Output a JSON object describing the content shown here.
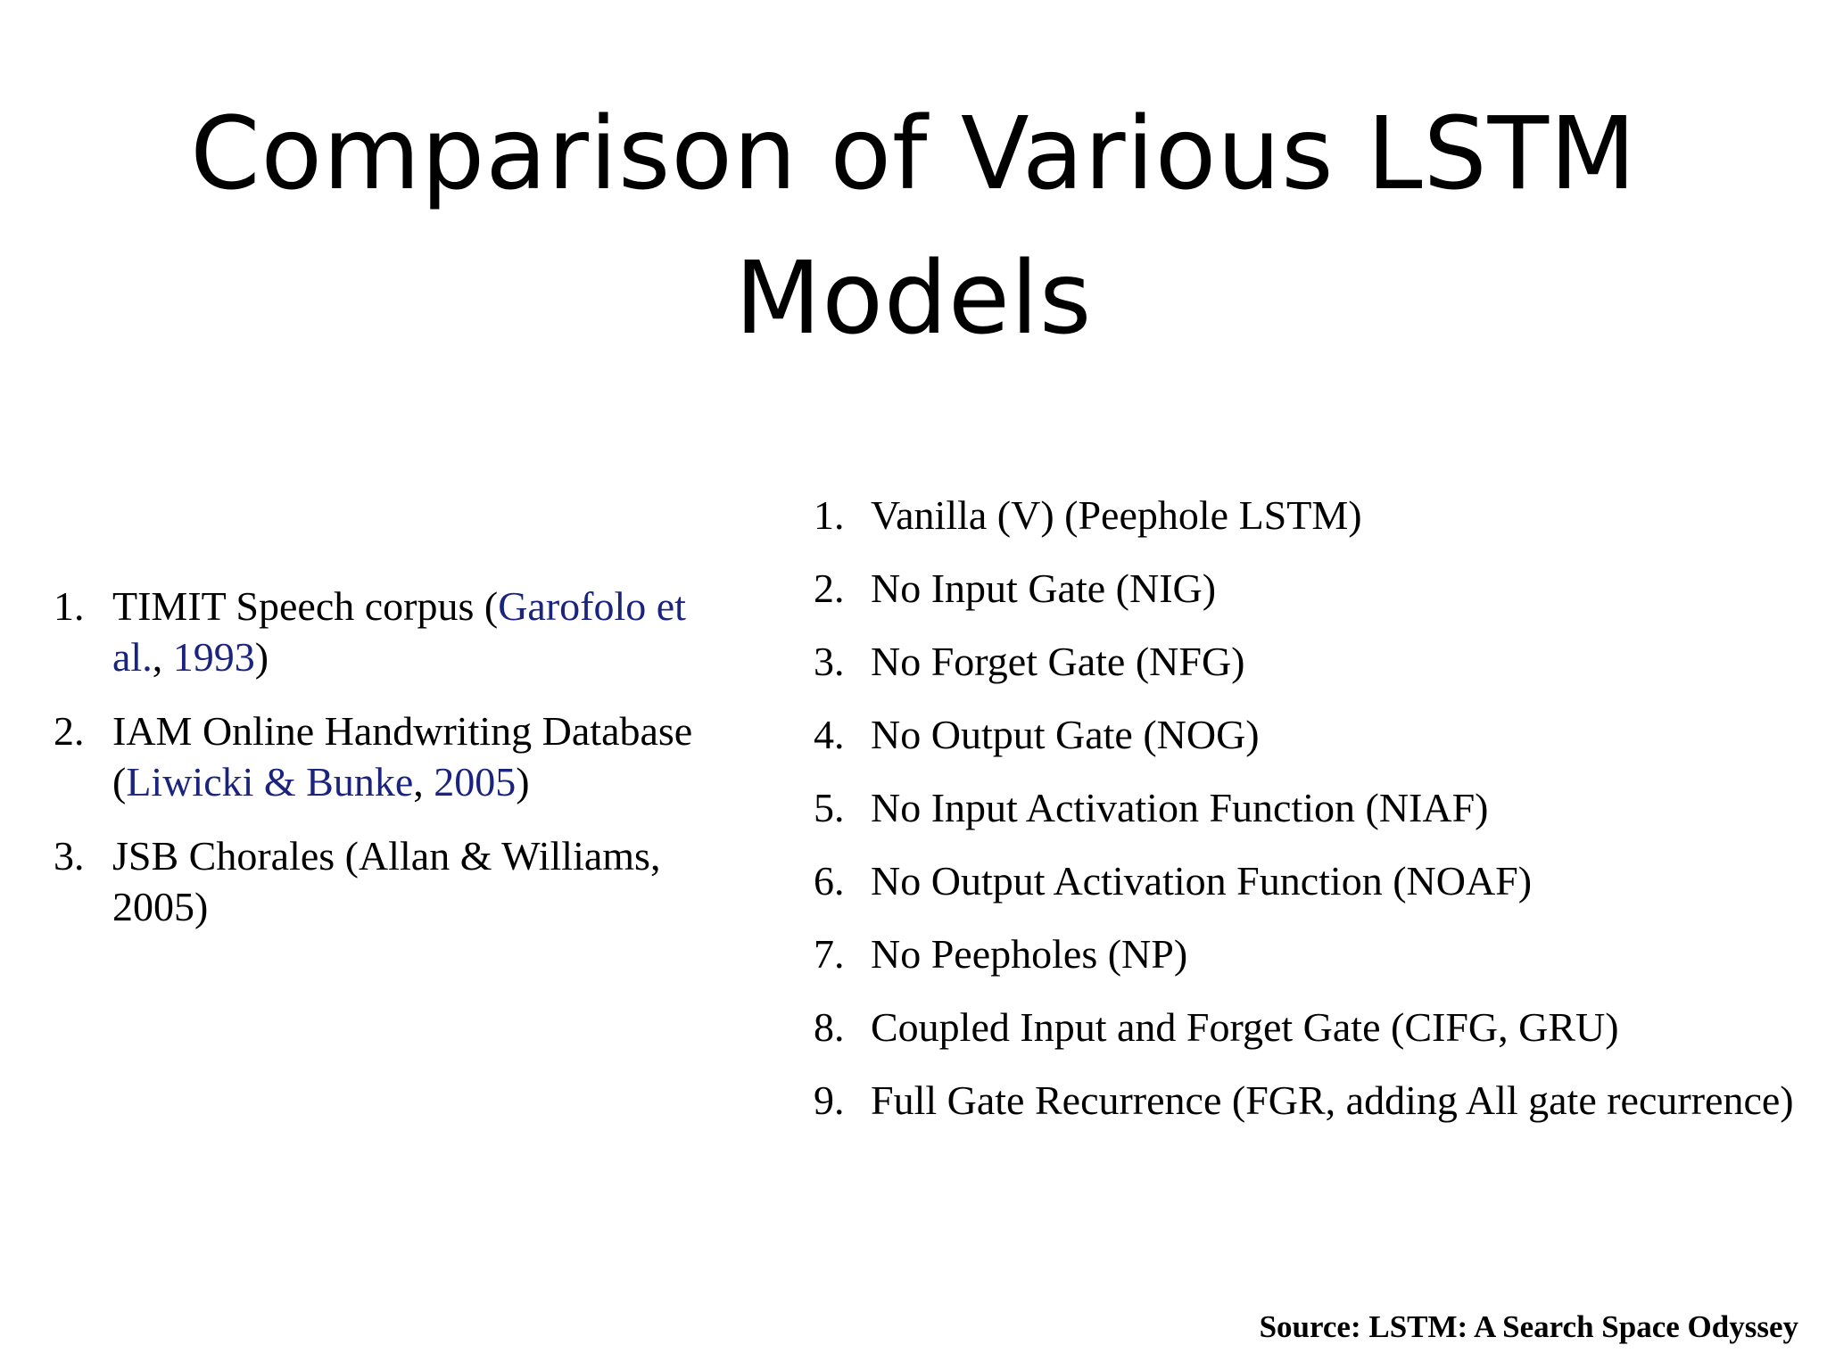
{
  "title": {
    "line1": "Comparison of Various LSTM",
    "line2": "Models"
  },
  "datasets": {
    "items": [
      {
        "number": "1.",
        "text_before": "TIMIT Speech corpus (",
        "cite_author": "Garofolo et al.",
        "sep": ", ",
        "cite_year": "1993",
        "text_after": ")"
      },
      {
        "number": "2.",
        "text_before": "IAM Online Handwriting Database (",
        "cite_author": "Liwicki & Bunke",
        "sep": ", ",
        "cite_year": "2005",
        "text_after": ")"
      },
      {
        "number": "3.",
        "text": "JSB Chorales (Allan & Williams, 2005)"
      }
    ]
  },
  "variants": {
    "items": [
      {
        "number": "1.",
        "text": "Vanilla (V) (Peephole LSTM)"
      },
      {
        "number": "2.",
        "text": "No Input Gate (NIG)"
      },
      {
        "number": "3.",
        "text": "No Forget Gate (NFG)"
      },
      {
        "number": "4.",
        "text": "No Output Gate (NOG)"
      },
      {
        "number": "5.",
        "text": "No Input Activation Function (NIAF)"
      },
      {
        "number": "6.",
        "text": "No Output Activation Function (NOAF)"
      },
      {
        "number": "7.",
        "text": "No Peepholes (NP)"
      },
      {
        "number": "8.",
        "text": "Coupled Input and Forget Gate (CIFG, GRU)"
      },
      {
        "number": "9.",
        "text": "Full Gate Recurrence (FGR, adding All gate recurrence)"
      }
    ]
  },
  "source": "Source: LSTM: A Search Space Odyssey",
  "colors": {
    "text": "#000000",
    "citation": "#1a237e",
    "background": "#ffffff"
  }
}
